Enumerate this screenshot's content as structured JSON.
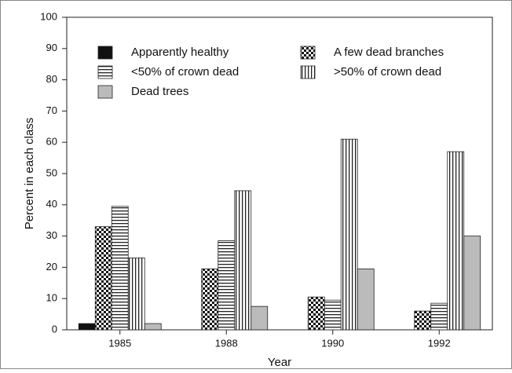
{
  "chart_data": {
    "type": "bar",
    "categories": [
      "1985",
      "1988",
      "1990",
      "1992"
    ],
    "series": [
      {
        "name": "Apparently healthy",
        "color": "#111111",
        "pattern": "solid",
        "values": [
          2,
          0,
          0,
          0
        ]
      },
      {
        "name": "A few dead branches",
        "color": "#111111",
        "pattern": "checker",
        "values": [
          33,
          19.5,
          10.5,
          6
        ]
      },
      {
        "name": "<50% of crown dead",
        "color": "#222222",
        "pattern": "horizontal",
        "values": [
          39.5,
          28.5,
          9.5,
          8.5
        ]
      },
      {
        "name": ">50% of crown dead",
        "color": "#222222",
        "pattern": "vertical",
        "values": [
          23,
          44.5,
          61,
          57
        ]
      },
      {
        "name": "Dead trees",
        "color": "#bbbbbb",
        "pattern": "solid",
        "values": [
          2,
          7.5,
          19.5,
          30
        ]
      }
    ],
    "xlabel": "Year",
    "ylabel": "Percent in each class",
    "ylim": [
      0,
      100
    ],
    "yticks": [
      0,
      10,
      20,
      30,
      40,
      50,
      60,
      70,
      80,
      90,
      100
    ],
    "grid": false,
    "legend": "top"
  }
}
